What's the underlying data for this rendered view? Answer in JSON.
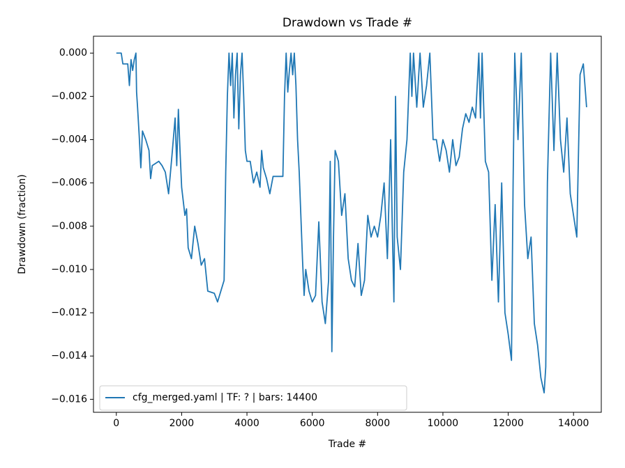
{
  "chart_data": {
    "type": "line",
    "title": "Drawdown vs Trade #",
    "xlabel": "Trade #",
    "ylabel": "Drawdown (fraction)",
    "xlim": [
      -700,
      14850
    ],
    "ylim": [
      -0.0166,
      0.00078
    ],
    "xticks": [
      0,
      2000,
      4000,
      6000,
      8000,
      10000,
      12000,
      14000
    ],
    "yticks": [
      {
        "value": 0,
        "label": "0.000"
      },
      {
        "value": -0.002,
        "label": "−0.002"
      },
      {
        "value": -0.004,
        "label": "−0.004"
      },
      {
        "value": -0.006,
        "label": "−0.006"
      },
      {
        "value": -0.008,
        "label": "−0.008"
      },
      {
        "value": -0.01,
        "label": "−0.010"
      },
      {
        "value": -0.012,
        "label": "−0.012"
      },
      {
        "value": -0.014,
        "label": "−0.014"
      },
      {
        "value": -0.016,
        "label": "−0.016"
      }
    ],
    "grid": false,
    "legend": "lower left",
    "x": [
      0,
      150,
      200,
      350,
      400,
      450,
      500,
      550,
      600,
      620,
      650,
      700,
      750,
      800,
      900,
      1000,
      1050,
      1100,
      1300,
      1400,
      1500,
      1600,
      1700,
      1800,
      1850,
      1900,
      1950,
      2000,
      2100,
      2150,
      2200,
      2300,
      2400,
      2500,
      2600,
      2700,
      2800,
      3000,
      3100,
      3200,
      3300,
      3350,
      3400,
      3450,
      3500,
      3550,
      3600,
      3650,
      3700,
      3750,
      3800,
      3850,
      3900,
      3950,
      4000,
      4100,
      4200,
      4300,
      4400,
      4450,
      4500,
      4600,
      4700,
      4800,
      5100,
      5150,
      5200,
      5250,
      5300,
      5350,
      5400,
      5450,
      5500,
      5550,
      5600,
      5650,
      5700,
      5750,
      5800,
      5900,
      6000,
      6100,
      6200,
      6300,
      6400,
      6500,
      6550,
      6600,
      6650,
      6700,
      6800,
      6900,
      7000,
      7100,
      7200,
      7300,
      7400,
      7500,
      7600,
      7700,
      7800,
      7900,
      8000,
      8100,
      8200,
      8300,
      8400,
      8450,
      8500,
      8550,
      8600,
      8700,
      8800,
      8900,
      9000,
      9050,
      9100,
      9200,
      9300,
      9400,
      9500,
      9600,
      9700,
      9800,
      9900,
      10000,
      10100,
      10200,
      10300,
      10400,
      10500,
      10600,
      10700,
      10800,
      10900,
      11000,
      11100,
      11150,
      11200,
      11300,
      11400,
      11500,
      11600,
      11700,
      11800,
      11900,
      12000,
      12100,
      12150,
      12200,
      12300,
      12400,
      12500,
      12600,
      12700,
      12800,
      12900,
      13000,
      13100,
      13150,
      13200,
      13300,
      13400,
      13500,
      13600,
      13700,
      13800,
      13900,
      14000,
      14100,
      14200,
      14300,
      14400
    ],
    "series": [
      {
        "name": "cfg_merged.yaml | TF: ? | bars: 14400",
        "color": "#1f77b4",
        "values": [
          0,
          0,
          -0.0005,
          -0.0005,
          -0.0015,
          -0.0003,
          -0.0008,
          -0.0003,
          0,
          -0.0018,
          -0.0025,
          -0.0038,
          -0.0053,
          -0.0036,
          -0.004,
          -0.0045,
          -0.0058,
          -0.0052,
          -0.005,
          -0.0052,
          -0.0055,
          -0.0065,
          -0.0048,
          -0.003,
          -0.0052,
          -0.0026,
          -0.0045,
          -0.0062,
          -0.0075,
          -0.0072,
          -0.009,
          -0.0095,
          -0.008,
          -0.0088,
          -0.0098,
          -0.0095,
          -0.011,
          -0.0111,
          -0.0115,
          -0.011,
          -0.0105,
          -0.0055,
          -0.002,
          0,
          -0.0015,
          0,
          -0.003,
          -0.001,
          0,
          -0.0035,
          -0.001,
          0,
          -0.002,
          -0.0045,
          -0.005,
          -0.005,
          -0.006,
          -0.0055,
          -0.0062,
          -0.0045,
          -0.0053,
          -0.0058,
          -0.0065,
          -0.0057,
          -0.0057,
          -0.002,
          0,
          -0.0018,
          -0.0008,
          0,
          -0.001,
          0,
          -0.0015,
          -0.004,
          -0.0055,
          -0.0075,
          -0.0095,
          -0.0112,
          -0.01,
          -0.011,
          -0.0115,
          -0.0112,
          -0.0078,
          -0.0115,
          -0.0125,
          -0.0105,
          -0.005,
          -0.0138,
          -0.0085,
          -0.0045,
          -0.005,
          -0.0075,
          -0.0065,
          -0.0095,
          -0.0105,
          -0.0108,
          -0.0088,
          -0.0112,
          -0.0105,
          -0.0075,
          -0.0085,
          -0.008,
          -0.0085,
          -0.0075,
          -0.006,
          -0.0095,
          -0.004,
          -0.008,
          -0.0115,
          -0.002,
          -0.0085,
          -0.01,
          -0.0055,
          -0.004,
          0,
          -0.002,
          0,
          -0.0025,
          0,
          -0.0025,
          -0.0015,
          0,
          -0.004,
          -0.004,
          -0.005,
          -0.004,
          -0.0045,
          -0.0055,
          -0.004,
          -0.0052,
          -0.0048,
          -0.0035,
          -0.0028,
          -0.0032,
          -0.0025,
          -0.003,
          0,
          -0.003,
          0,
          -0.005,
          -0.0055,
          -0.0105,
          -0.007,
          -0.0115,
          -0.006,
          -0.012,
          -0.013,
          -0.0142,
          -0.006,
          0,
          -0.004,
          0,
          -0.007,
          -0.0095,
          -0.0085,
          -0.0125,
          -0.0135,
          -0.015,
          -0.0157,
          -0.0145,
          -0.006,
          0,
          -0.0045,
          0,
          -0.004,
          -0.0055,
          -0.003,
          -0.0065,
          -0.0075,
          -0.0085,
          -0.001,
          -0.0005,
          -0.0025
        ]
      }
    ]
  }
}
